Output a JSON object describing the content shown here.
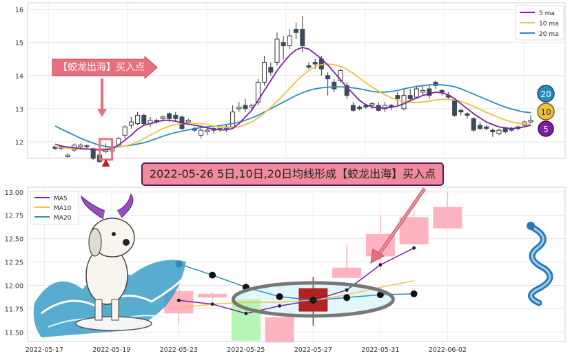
{
  "banner_text": "2022-05-26 5日,10日,20日均线形成【蛟龙出海】买入点",
  "callout_text": "【蛟龙出海】买入点",
  "badges": {
    "ma20": "20",
    "ma10": "10",
    "ma5": "5"
  },
  "colors": {
    "ma5": "#7b1fa2",
    "ma10": "#f0c040",
    "ma20": "#2a8bbf",
    "up": "#ffb3c0",
    "down": "#b5f5b5",
    "signal": "#b22222",
    "overview_down": "#3b4a5a"
  },
  "chart_data": [
    {
      "type": "line",
      "ylim": [
        11.5,
        16.2
      ],
      "yticks": [
        12,
        13,
        14,
        15,
        16
      ],
      "grid": true,
      "legend": "top-right",
      "legend_labels": [
        "5 ma",
        "10 ma",
        "20 ma"
      ],
      "candles": [
        [
          11.85,
          11.8,
          11.88,
          11.75
        ],
        [
          11.8,
          11.85,
          11.9,
          11.75
        ],
        [
          11.55,
          11.6,
          11.65,
          11.52
        ],
        [
          11.75,
          11.9,
          11.95,
          11.7
        ],
        [
          11.85,
          11.9,
          11.95,
          11.82
        ],
        [
          11.88,
          11.85,
          11.92,
          11.8
        ],
        [
          11.8,
          11.5,
          11.82,
          11.45
        ],
        [
          11.6,
          11.4,
          11.65,
          11.38
        ],
        [
          11.7,
          11.75,
          11.95,
          11.65
        ],
        [
          11.72,
          11.83,
          11.95,
          11.6
        ],
        [
          11.9,
          12.1,
          12.15,
          11.85
        ],
        [
          12.2,
          12.45,
          12.5,
          12.1
        ],
        [
          12.5,
          12.6,
          12.75,
          12.4
        ],
        [
          12.55,
          12.8,
          12.9,
          12.5
        ],
        [
          12.8,
          12.55,
          12.85,
          12.5
        ],
        [
          12.55,
          12.65,
          12.75,
          12.45
        ],
        [
          12.65,
          12.6,
          12.7,
          12.55
        ],
        [
          12.7,
          12.75,
          12.8,
          12.6
        ],
        [
          12.85,
          12.7,
          12.9,
          12.6
        ],
        [
          12.8,
          12.7,
          12.9,
          12.6
        ],
        [
          12.75,
          12.4,
          12.8,
          12.35
        ],
        [
          12.6,
          12.65,
          12.7,
          12.55
        ],
        [
          12.4,
          12.35,
          12.45,
          12.3
        ],
        [
          12.2,
          12.35,
          12.4,
          12.1
        ],
        [
          12.3,
          12.35,
          12.4,
          12.2
        ],
        [
          12.35,
          12.4,
          12.45,
          12.25
        ],
        [
          12.4,
          12.45,
          12.5,
          12.3
        ],
        [
          12.45,
          12.4,
          12.5,
          12.3
        ],
        [
          12.45,
          12.9,
          13.1,
          12.4
        ],
        [
          13.0,
          13.05,
          13.2,
          12.9
        ],
        [
          13.1,
          13.0,
          13.3,
          12.9
        ],
        [
          13.05,
          13.1,
          13.15,
          12.95
        ],
        [
          13.2,
          13.8,
          13.9,
          13.1
        ],
        [
          13.8,
          14.4,
          14.6,
          13.7
        ],
        [
          14.25,
          14.1,
          14.4,
          14.0
        ],
        [
          14.4,
          15.1,
          15.3,
          14.3
        ],
        [
          15.0,
          14.9,
          15.2,
          14.5
        ],
        [
          14.9,
          15.2,
          15.4,
          14.8
        ],
        [
          15.4,
          15.3,
          15.6,
          15.1
        ],
        [
          15.4,
          14.9,
          15.8,
          14.7
        ],
        [
          14.3,
          14.25,
          14.4,
          14.2
        ],
        [
          14.4,
          14.35,
          14.5,
          14.2
        ],
        [
          14.5,
          14.2,
          14.6,
          14.0
        ],
        [
          14.0,
          13.9,
          14.1,
          13.4
        ],
        [
          13.8,
          13.6,
          13.9,
          13.5
        ],
        [
          13.85,
          14.15,
          14.2,
          13.8
        ],
        [
          13.7,
          13.4,
          13.8,
          13.3
        ],
        [
          13.1,
          12.95,
          13.2,
          12.9
        ],
        [
          13.05,
          13.0,
          13.1,
          12.95
        ],
        [
          13.1,
          13.05,
          13.15,
          13.0
        ],
        [
          13.1,
          13.15,
          13.2,
          13.0
        ],
        [
          13.1,
          12.95,
          13.2,
          12.9
        ],
        [
          13.0,
          13.1,
          13.2,
          12.9
        ],
        [
          13.1,
          13.05,
          13.15,
          12.95
        ],
        [
          13.4,
          13.3,
          13.5,
          13.1
        ],
        [
          13.0,
          13.4,
          13.6,
          12.95
        ],
        [
          13.4,
          13.3,
          13.6,
          13.2
        ],
        [
          13.35,
          13.6,
          13.7,
          13.3
        ],
        [
          13.5,
          13.55,
          13.7,
          13.4
        ],
        [
          13.6,
          13.4,
          13.7,
          13.3
        ],
        [
          13.8,
          13.7,
          13.85,
          13.6
        ],
        [
          13.55,
          13.5,
          13.6,
          13.4
        ],
        [
          13.4,
          13.35,
          13.5,
          13.3
        ],
        [
          13.25,
          12.8,
          13.3,
          12.75
        ],
        [
          12.95,
          12.9,
          13.0,
          12.8
        ],
        [
          12.85,
          12.8,
          12.9,
          12.7
        ],
        [
          12.7,
          12.35,
          12.75,
          12.3
        ],
        [
          12.5,
          12.4,
          12.6,
          12.35
        ],
        [
          12.45,
          12.4,
          12.5,
          12.35
        ],
        [
          12.35,
          12.3,
          12.4,
          12.15
        ],
        [
          12.25,
          12.35,
          12.4,
          12.2
        ],
        [
          12.4,
          12.3,
          12.45,
          12.25
        ],
        [
          12.4,
          12.35,
          12.45,
          12.3
        ],
        [
          12.4,
          12.45,
          12.5,
          12.35
        ],
        [
          12.5,
          12.6,
          12.65,
          12.45
        ],
        [
          12.6,
          12.65,
          12.8,
          12.55
        ]
      ],
      "ma5": [
        11.93,
        11.87,
        11.84,
        11.82,
        11.8,
        11.78,
        11.77,
        11.75,
        11.76,
        11.8,
        11.9,
        12.05,
        12.2,
        12.38,
        12.5,
        12.55,
        12.6,
        12.65,
        12.65,
        12.62,
        12.57,
        12.53,
        12.5,
        12.47,
        12.42,
        12.38,
        12.36,
        12.36,
        12.4,
        12.55,
        12.75,
        12.95,
        13.25,
        13.55,
        13.85,
        14.15,
        14.4,
        14.62,
        14.78,
        14.85,
        14.8,
        14.66,
        14.5,
        14.32,
        14.1,
        13.88,
        13.65,
        13.45,
        13.25,
        13.12,
        13.05,
        13.02,
        13.02,
        13.04,
        13.08,
        13.15,
        13.25,
        13.32,
        13.4,
        13.45,
        13.5,
        13.48,
        13.42,
        13.3,
        13.15,
        13.0,
        12.85,
        12.72,
        12.6,
        12.52,
        12.45,
        12.42,
        12.4,
        12.42,
        12.45,
        12.5
      ],
      "ma10": [
        11.85,
        11.82,
        11.8,
        11.79,
        11.78,
        11.78,
        11.78,
        11.79,
        11.8,
        11.82,
        11.84,
        11.87,
        11.92,
        12.0,
        12.1,
        12.2,
        12.3,
        12.4,
        12.47,
        12.52,
        12.55,
        12.56,
        12.56,
        12.55,
        12.52,
        12.48,
        12.45,
        12.43,
        12.43,
        12.45,
        12.52,
        12.6,
        12.72,
        12.87,
        13.04,
        13.22,
        13.42,
        13.62,
        13.82,
        14.0,
        14.15,
        14.27,
        14.33,
        14.35,
        14.33,
        14.28,
        14.19,
        14.07,
        13.93,
        13.78,
        13.65,
        13.53,
        13.42,
        13.33,
        13.26,
        13.21,
        13.19,
        13.19,
        13.2,
        13.23,
        13.26,
        13.28,
        13.28,
        13.26,
        13.22,
        13.15,
        13.07,
        12.98,
        12.89,
        12.81,
        12.73,
        12.66,
        12.6,
        12.56,
        12.54,
        12.53
      ],
      "ma20": [
        12.48,
        12.38,
        12.29,
        12.2,
        12.11,
        12.03,
        11.96,
        11.9,
        11.86,
        11.84,
        11.85,
        11.87,
        11.9,
        11.93,
        11.97,
        12.03,
        12.1,
        12.17,
        12.23,
        12.28,
        12.32,
        12.36,
        12.4,
        12.43,
        12.45,
        12.47,
        12.49,
        12.52,
        12.55,
        12.59,
        12.65,
        12.72,
        12.8,
        12.9,
        13.0,
        13.1,
        13.2,
        13.3,
        13.4,
        13.48,
        13.55,
        13.6,
        13.63,
        13.65,
        13.66,
        13.66,
        13.65,
        13.63,
        13.6,
        13.56,
        13.52,
        13.5,
        13.5,
        13.52,
        13.55,
        13.6,
        13.64,
        13.67,
        13.7,
        13.72,
        13.73,
        13.72,
        13.7,
        13.66,
        13.6,
        13.52,
        13.44,
        13.36,
        13.28,
        13.2,
        13.12,
        13.05,
        12.99,
        12.94,
        12.9,
        12.88
      ],
      "signal_index": 8
    },
    {
      "type": "line",
      "ylim": [
        11.4,
        13.05
      ],
      "yticks": [
        11.5,
        11.75,
        12.0,
        12.25,
        12.5,
        12.75,
        13.0
      ],
      "ytick_labels": [
        "11.50",
        "11.75",
        "12.00",
        "12.25",
        "12.50",
        "12.75",
        "13.00"
      ],
      "x_range": [
        16.5,
        32.5
      ],
      "xticks": [
        {
          "x": 17,
          "label": "2022-05-17"
        },
        {
          "x": 19,
          "label": "2022-05-19"
        },
        {
          "x": 21,
          "label": "2022-05-23"
        },
        {
          "x": 23,
          "label": "2022-05-25"
        },
        {
          "x": 25,
          "label": "2022-05-27"
        },
        {
          "x": 27,
          "label": "2022-05-31"
        },
        {
          "x": 29,
          "label": "2022-06-02"
        }
      ],
      "grid": true,
      "legend": "top-left",
      "series": [
        {
          "name": "MA5",
          "color": "#7b1fa2",
          "x": [
            21,
            22,
            23,
            24,
            25,
            26,
            27,
            28
          ],
          "values": [
            11.84,
            11.8,
            11.7,
            11.78,
            11.84,
            11.95,
            12.22,
            12.4
          ]
        },
        {
          "name": "MA10",
          "color": "#f0c040",
          "x": [
            21,
            22,
            23,
            24,
            25,
            26,
            27,
            28
          ],
          "values": [
            11.76,
            11.8,
            11.82,
            11.82,
            11.84,
            11.9,
            11.98,
            12.05
          ]
        },
        {
          "name": "MA20",
          "color": "#2a8bbf",
          "x": [
            21,
            22,
            23,
            24,
            25,
            26,
            27,
            28
          ],
          "values": [
            12.23,
            12.11,
            11.98,
            11.88,
            11.84,
            11.87,
            11.9,
            11.91
          ]
        }
      ],
      "candles": [
        {
          "x": 21,
          "open": 11.7,
          "close": 11.94,
          "high": 12.03,
          "low": 11.58
        },
        {
          "x": 22,
          "open": 11.87,
          "close": 11.91,
          "high": 11.93,
          "low": 11.84
        },
        {
          "x": 23,
          "open": 11.85,
          "close": 11.41,
          "high": 11.85,
          "low": 11.41
        },
        {
          "x": 24,
          "open": 11.39,
          "close": 11.66,
          "high": 11.66,
          "low": 11.39
        },
        {
          "x": 25,
          "open": 11.72,
          "close": 11.97,
          "high": 12.09,
          "low": 11.57
        },
        {
          "x": 26,
          "open": 12.08,
          "close": 12.19,
          "high": 12.44,
          "low": 12.08
        },
        {
          "x": 27,
          "open": 12.31,
          "close": 12.55,
          "high": 12.75,
          "low": 12.17
        },
        {
          "x": 28,
          "open": 12.44,
          "close": 12.73,
          "high": 12.8,
          "low": 12.44
        },
        {
          "x": 29,
          "open": 12.61,
          "close": 12.84,
          "high": 13.0,
          "low": 12.61
        }
      ],
      "signal_index": 4
    }
  ]
}
